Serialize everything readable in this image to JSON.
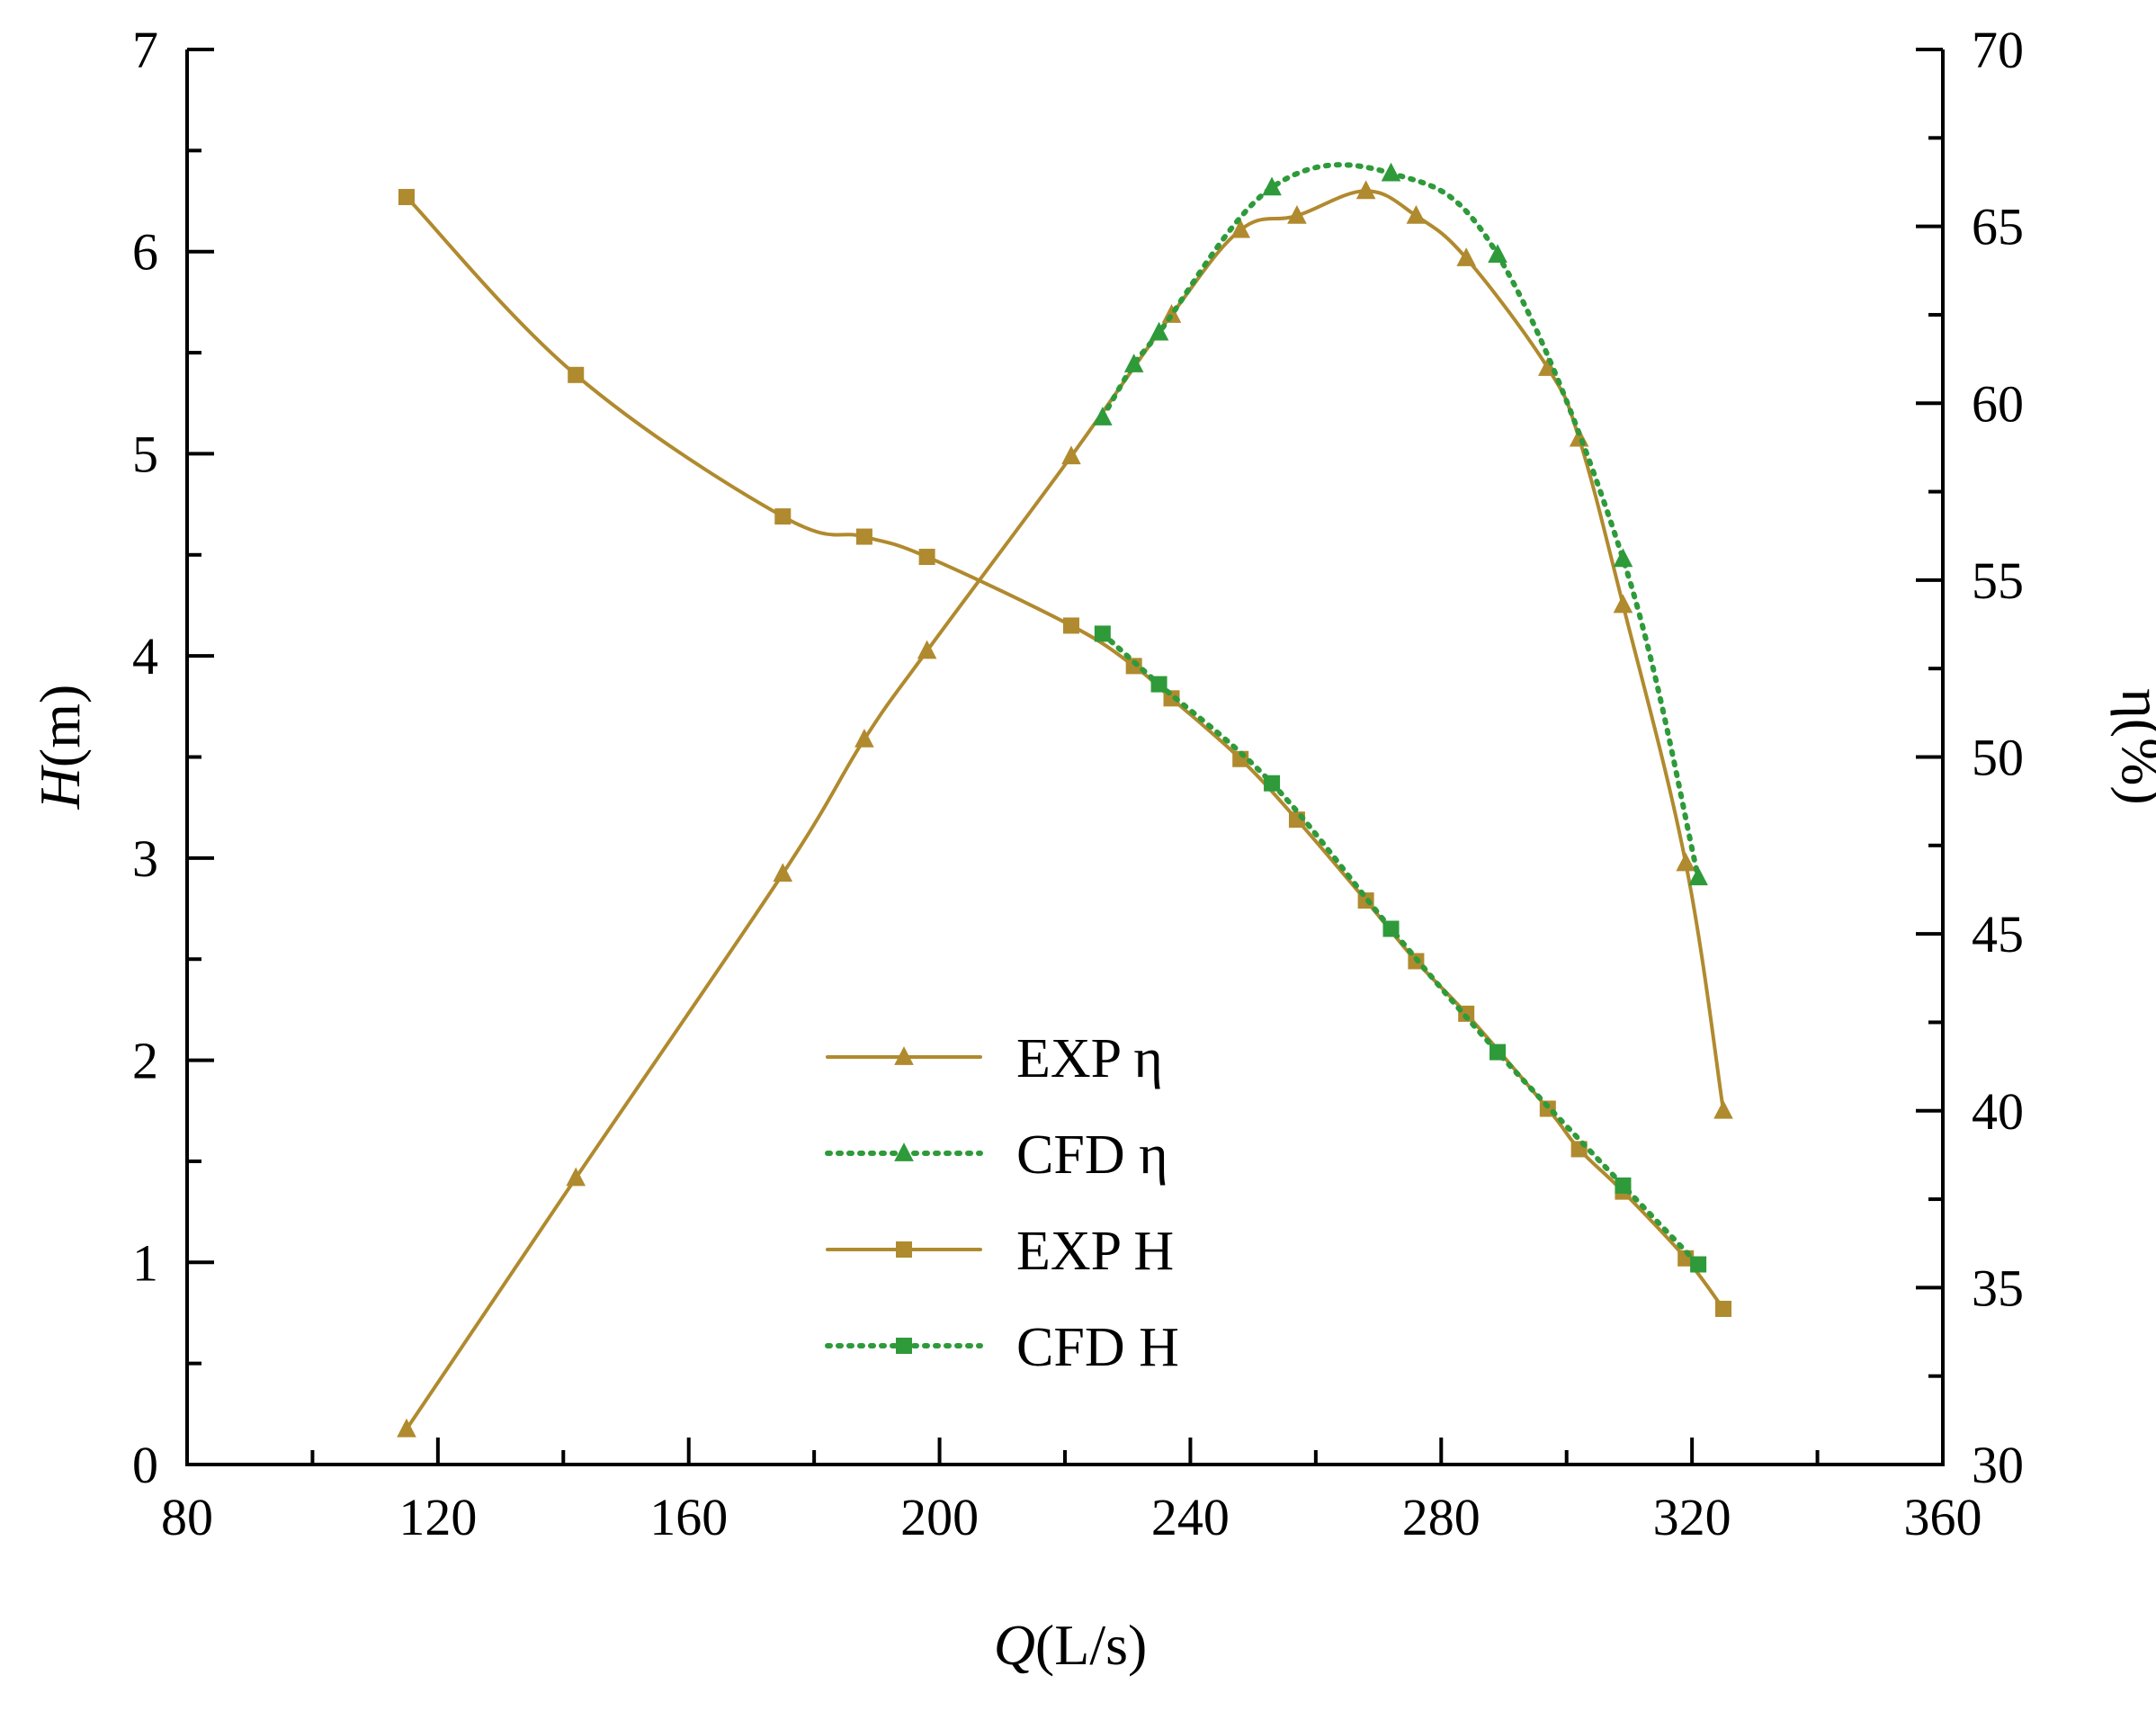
{
  "chart_data": {
    "type": "line",
    "title": "",
    "xlabel": {
      "italic": "Q",
      "unit": "(L/s)"
    },
    "ylabel_left": {
      "italic": "H",
      "unit": "(m)"
    },
    "ylabel_right": "η(%)",
    "xlim": [
      80,
      360
    ],
    "ylim_left": [
      0,
      7
    ],
    "ylim_right": [
      30,
      70
    ],
    "xticks": [
      "80",
      "120",
      "160",
      "200",
      "240",
      "280",
      "320",
      "360"
    ],
    "yticks_left": [
      "0",
      "1",
      "2",
      "3",
      "4",
      "5",
      "6",
      "7"
    ],
    "yticks_right": [
      "30",
      "35",
      "40",
      "45",
      "50",
      "55",
      "60",
      "65",
      "70"
    ],
    "grid": false,
    "legend_position": "center-bottom",
    "colors": {
      "exp": "#B08A2E",
      "cfd": "#2E9A3A",
      "axis": "#000000"
    },
    "series": [
      {
        "name": "EXP η",
        "axis": "right",
        "style": "solid",
        "marker": "triangle",
        "color": "#B08A2E",
        "x": [
          115,
          142,
          175,
          188,
          198,
          221,
          237,
          248,
          257,
          268,
          276,
          284,
          297,
          302,
          309,
          319,
          325
        ],
        "y": [
          31.0,
          38.1,
          46.7,
          50.5,
          53.0,
          58.5,
          62.5,
          64.9,
          65.3,
          66.0,
          65.3,
          64.1,
          61.0,
          59.0,
          54.3,
          47.0,
          40.0
        ]
      },
      {
        "name": "CFD η",
        "axis": "right",
        "style": "dotted",
        "marker": "triangle",
        "color": "#2E9A3A",
        "x": [
          226,
          231,
          235,
          253,
          272,
          289,
          309,
          321
        ],
        "y": [
          59.6,
          61.1,
          62.0,
          66.1,
          66.5,
          64.2,
          55.6,
          46.6
        ]
      },
      {
        "name": "EXP H",
        "axis": "left",
        "style": "solid",
        "marker": "square",
        "color": "#B08A2E",
        "x": [
          115,
          142,
          175,
          188,
          198,
          221,
          231,
          237,
          248,
          257,
          268,
          276,
          284,
          297,
          302,
          309,
          319,
          325
        ],
        "y": [
          6.27,
          5.39,
          4.69,
          4.59,
          4.49,
          4.15,
          3.95,
          3.79,
          3.49,
          3.19,
          2.79,
          2.49,
          2.23,
          1.76,
          1.56,
          1.35,
          1.02,
          0.77
        ]
      },
      {
        "name": "CFD H",
        "axis": "left",
        "style": "dotted",
        "marker": "square",
        "color": "#2E9A3A",
        "x": [
          226,
          235,
          253,
          272,
          289,
          309,
          321
        ],
        "y": [
          4.11,
          3.86,
          3.37,
          2.65,
          2.04,
          1.38,
          0.99
        ]
      }
    ]
  }
}
